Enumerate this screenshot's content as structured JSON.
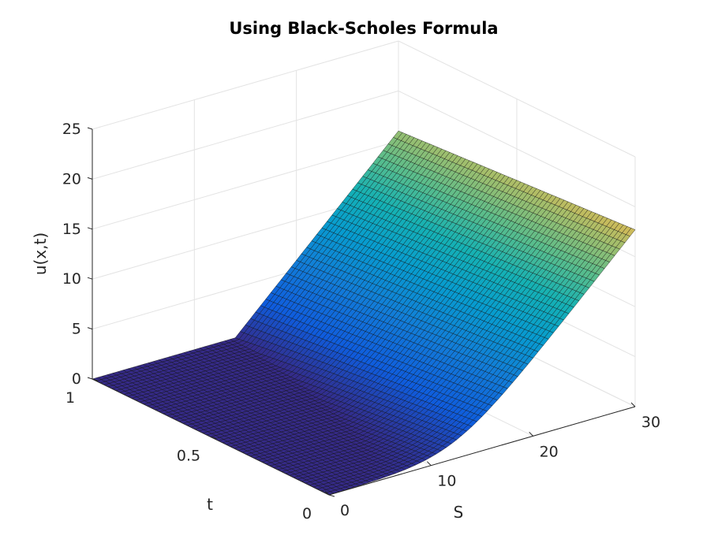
{
  "chart_data": {
    "type": "surface",
    "title": "Using Black-Scholes Formula",
    "xlabel": "S",
    "ylabel": "t",
    "zlabel": "u(x,t)",
    "xlim": [
      0,
      30
    ],
    "ylim": [
      0,
      1
    ],
    "zlim": [
      0,
      25
    ],
    "x_ticks": [
      "0",
      "10",
      "20",
      "30"
    ],
    "y_ticks": [
      "0",
      "0.5",
      "1"
    ],
    "z_ticks": [
      "0",
      "5",
      "10",
      "15",
      "20",
      "25"
    ],
    "grid": true,
    "colormap": "parula",
    "S": [
      0,
      5,
      10,
      15,
      20,
      25,
      30
    ],
    "t": [
      0,
      0.5,
      1
    ],
    "u": [
      [
        0,
        0,
        0.08,
        2.7,
        7.7,
        12.7,
        17.7
      ],
      [
        0,
        0,
        0,
        0.6,
        5.6,
        10.6,
        15.6
      ],
      [
        0,
        0,
        0,
        0,
        4.0,
        9.0,
        14.0
      ]
    ],
    "description": "European call option value u(S,t) computed with the Black-Scholes formula"
  }
}
